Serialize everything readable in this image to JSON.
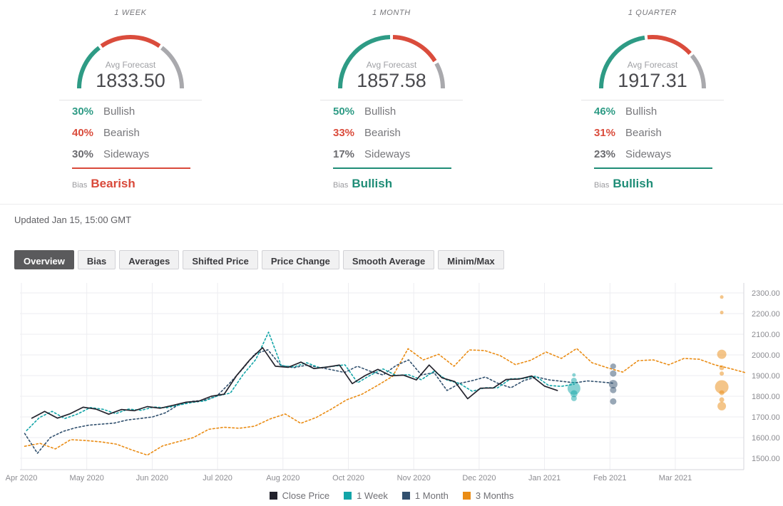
{
  "labels": {
    "avg_forecast": "Avg Forecast",
    "bullish": "Bullish",
    "bearish": "Bearish",
    "sideways": "Sideways",
    "bias": "Bias"
  },
  "colors": {
    "gauge_green": "#2e9b85",
    "gauge_red": "#da4c3c",
    "gauge_gray": "#a9a9ad",
    "bias_bullish": "#1f8d77",
    "bias_bearish": "#d9493a"
  },
  "panels": [
    {
      "title": "1 WEEK",
      "avg_forecast": "1833.50",
      "bullish_pct": "30%",
      "bearish_pct": "40%",
      "sideways_pct": "30%",
      "bias": "Bearish",
      "bias_color": "#d9493a",
      "gauge": {
        "bullish": 30,
        "bearish": 40,
        "sideways": 30
      }
    },
    {
      "title": "1 MONTH",
      "avg_forecast": "1857.58",
      "bullish_pct": "50%",
      "bearish_pct": "33%",
      "sideways_pct": "17%",
      "bias": "Bullish",
      "bias_color": "#1f8d77",
      "gauge": {
        "bullish": 50,
        "bearish": 33,
        "sideways": 17
      }
    },
    {
      "title": "1 QUARTER",
      "avg_forecast": "1917.31",
      "bullish_pct": "46%",
      "bearish_pct": "31%",
      "sideways_pct": "23%",
      "bias": "Bullish",
      "bias_color": "#1f8d77",
      "gauge": {
        "bullish": 46,
        "bearish": 31,
        "sideways": 23
      }
    }
  ],
  "updated": "Updated Jan 15, 15:00 GMT",
  "tabs": [
    {
      "label": "Overview",
      "active": true
    },
    {
      "label": "Bias",
      "active": false
    },
    {
      "label": "Averages",
      "active": false
    },
    {
      "label": "Shifted Price",
      "active": false
    },
    {
      "label": "Price Change",
      "active": false
    },
    {
      "label": "Smooth Average",
      "active": false
    },
    {
      "label": "Minim/Max",
      "active": false
    }
  ],
  "chart_data": {
    "type": "line",
    "title": "",
    "xlabel": "",
    "ylabel": "",
    "ylim": [
      1450,
      2340
    ],
    "grid": true,
    "legend_position": "bottom",
    "x_tick_labels": [
      "Apr 2020",
      "May 2020",
      "Jun 2020",
      "Jul 2020",
      "Aug 2020",
      "Oct 2020",
      "Nov 2020",
      "Dec 2020",
      "Jan 2021",
      "Feb 2021",
      "Mar 2021"
    ],
    "y_ticks": [
      2300,
      2200,
      2100,
      2000,
      1900,
      1800,
      1700,
      1600,
      1500
    ],
    "y_tick_labels": [
      "2300.00",
      "2200.00",
      "2100.00",
      "2000.00",
      "1900.00",
      "1800.00",
      "1700.00",
      "1600.00",
      "1500.00"
    ],
    "series": [
      {
        "name": "3 Months",
        "color": "#ea8c14",
        "style": "dotted",
        "x0": 0.05,
        "dx": 0.2345,
        "values": [
          1558,
          1572,
          1545,
          1590,
          1586,
          1579,
          1568,
          1540,
          1515,
          1560,
          1580,
          1600,
          1640,
          1650,
          1645,
          1655,
          1690,
          1714,
          1669,
          1697,
          1738,
          1783,
          1810,
          1852,
          1897,
          2030,
          1976,
          2003,
          1945,
          2024,
          2021,
          1997,
          1953,
          1974,
          2014,
          1983,
          2031,
          1962,
          1938,
          1917,
          1972,
          1976,
          1952,
          1983,
          1979,
          1952,
          1934,
          1914
        ]
      },
      {
        "name": "1 Month",
        "color": "#31506e",
        "style": "dotted",
        "x0": 0.05,
        "dx": 0.1957,
        "values": [
          1620,
          1524,
          1600,
          1630,
          1648,
          1660,
          1665,
          1670,
          1685,
          1692,
          1700,
          1720,
          1758,
          1775,
          1780,
          1800,
          1862,
          1930,
          2005,
          2025,
          1950,
          1938,
          1950,
          1940,
          1928,
          1915,
          1945,
          1921,
          1903,
          1948,
          1976,
          1903,
          1914,
          1828,
          1862,
          1876,
          1893,
          1862,
          1841,
          1876,
          1893,
          1879,
          1872,
          1865,
          1874,
          1869,
          1863
        ]
      },
      {
        "name": "1 Week",
        "color": "#12a5a8",
        "style": "dotted",
        "x0": 0.08,
        "dx": 0.1947,
        "values": [
          1634,
          1697,
          1727,
          1692,
          1714,
          1745,
          1737,
          1716,
          1738,
          1732,
          1748,
          1744,
          1758,
          1770,
          1778,
          1802,
          1815,
          1905,
          1978,
          2110,
          1948,
          1942,
          1962,
          1938,
          1944,
          1952,
          1865,
          1902,
          1932,
          1901,
          1904,
          1880,
          1921,
          1879,
          1862,
          1824,
          1841,
          1841,
          1884,
          1886,
          1897,
          1852,
          1848,
          1858
        ]
      },
      {
        "name": "Close Price",
        "color": "#23232d",
        "style": "solid",
        "x0": 0.16,
        "dx": 0.196,
        "values": [
          1694,
          1727,
          1694,
          1716,
          1747,
          1738,
          1713,
          1736,
          1730,
          1750,
          1742,
          1756,
          1771,
          1776,
          1800,
          1810,
          1902,
          1976,
          2035,
          1945,
          1940,
          1965,
          1934,
          1941,
          1951,
          1861,
          1900,
          1930,
          1899,
          1902,
          1879,
          1951,
          1889,
          1871,
          1788,
          1839,
          1840,
          1881,
          1883,
          1898,
          1849,
          1828
        ]
      }
    ],
    "bubbles": [
      {
        "series": "1 Week",
        "x": 8.45,
        "points": [
          {
            "y": 1903,
            "r": 2.5
          },
          {
            "y": 1876,
            "r": 4
          },
          {
            "y": 1838,
            "r": 9
          },
          {
            "y": 1812,
            "r": 5
          },
          {
            "y": 1790,
            "r": 4
          }
        ]
      },
      {
        "series": "1 Month",
        "x": 9.05,
        "points": [
          {
            "y": 1945,
            "r": 4
          },
          {
            "y": 1910,
            "r": 4.5
          },
          {
            "y": 1858,
            "r": 6
          },
          {
            "y": 1830,
            "r": 4.5
          },
          {
            "y": 1775,
            "r": 4.5
          }
        ]
      },
      {
        "series": "3 Months",
        "x": 10.71,
        "points": [
          {
            "y": 2280,
            "r": 2.5
          },
          {
            "y": 2205,
            "r": 2.5
          },
          {
            "y": 2003,
            "r": 6.5
          },
          {
            "y": 1938,
            "r": 3.5
          },
          {
            "y": 1910,
            "r": 3
          },
          {
            "y": 1845,
            "r": 9.5
          },
          {
            "y": 1817,
            "r": 3.5
          },
          {
            "y": 1783,
            "r": 3.5
          },
          {
            "y": 1752,
            "r": 6
          }
        ]
      }
    ],
    "legend": [
      {
        "label": "Close Price",
        "color": "#23232d"
      },
      {
        "label": "1 Week",
        "color": "#12a5a8"
      },
      {
        "label": "1 Month",
        "color": "#31506e"
      },
      {
        "label": "3 Months",
        "color": "#ea8c14"
      }
    ]
  }
}
